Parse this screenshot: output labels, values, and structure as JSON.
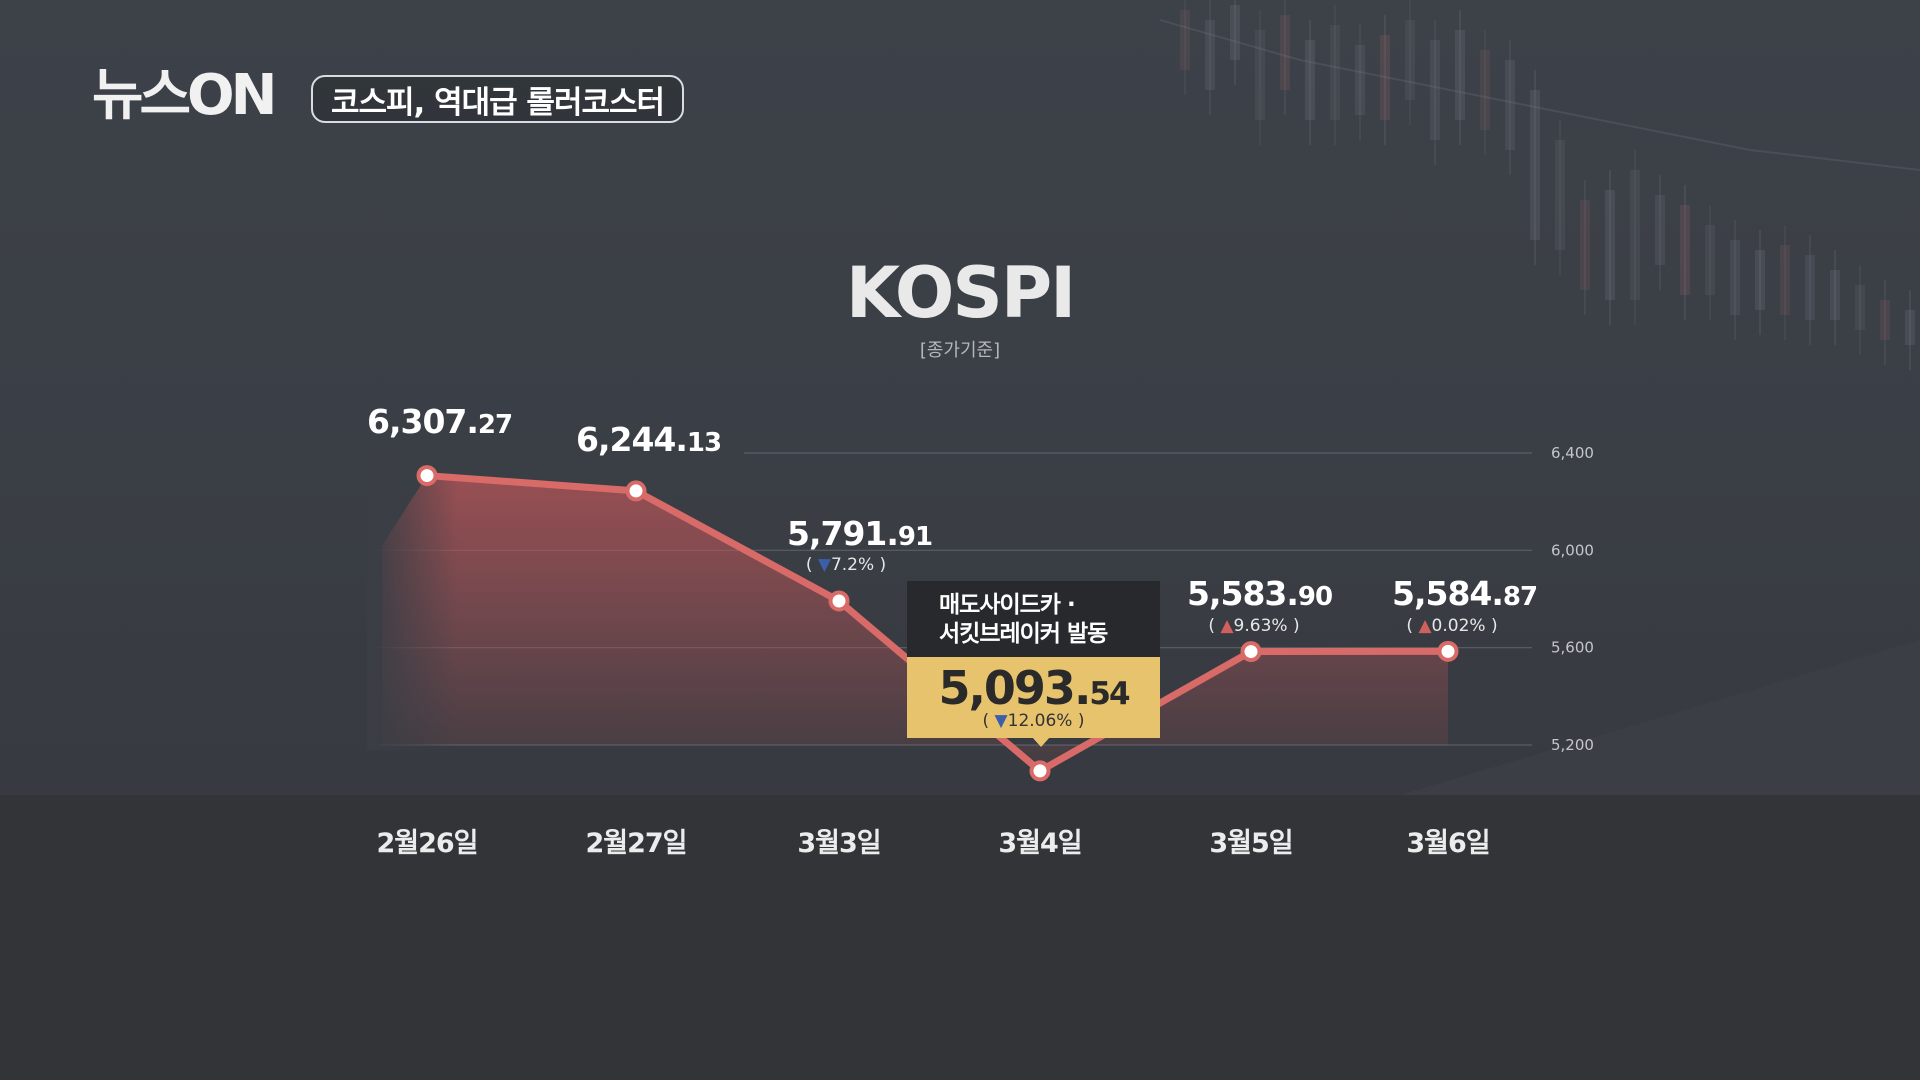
{
  "header": {
    "logo_text": "뉴스ON",
    "headline": "코스피, 역대급 롤러코스터"
  },
  "colors": {
    "line": "#d86b68",
    "area": "#b85558",
    "callout_gold": "#e8c36e",
    "callout_dark": "#27292c",
    "up_triangle": "#d0605e",
    "down_triangle": "#3d5ea8"
  },
  "chart_data": {
    "type": "line",
    "title": "KOSPI",
    "subtitle": "[종가기준]",
    "categories": [
      "2월26일",
      "2월27일",
      "3월3일",
      "3월4일",
      "3월5일",
      "3월6일"
    ],
    "values": [
      6307.27,
      6244.13,
      5791.91,
      5093.54,
      5583.9,
      5584.87
    ],
    "value_labels": [
      {
        "int": "6,307.",
        "dec": "27",
        "change": "",
        "dir": ""
      },
      {
        "int": "6,244.",
        "dec": "13",
        "change": "",
        "dir": ""
      },
      {
        "int": "5,791.",
        "dec": "91",
        "change": "7.2%",
        "dir": "down"
      },
      {
        "int": "5,093.",
        "dec": "54",
        "change": "12.06%",
        "dir": "down"
      },
      {
        "int": "5,583.",
        "dec": "90",
        "change": "9.63%",
        "dir": "up"
      },
      {
        "int": "5,584.",
        "dec": "87",
        "change": "0.02%",
        "dir": "up"
      }
    ],
    "yticks": [
      5200,
      5600,
      6000,
      6400
    ],
    "ytick_labels": [
      "5,200",
      "5,600",
      "6,000",
      "6,400"
    ],
    "grid": true,
    "annotation": {
      "index": 3,
      "line1": "매도사이드카 ·",
      "line2": "서킷브레이커 발동"
    }
  },
  "triangles": {
    "down": "▼",
    "up": "▲"
  },
  "paren": {
    "open": "(",
    "close": ")"
  }
}
